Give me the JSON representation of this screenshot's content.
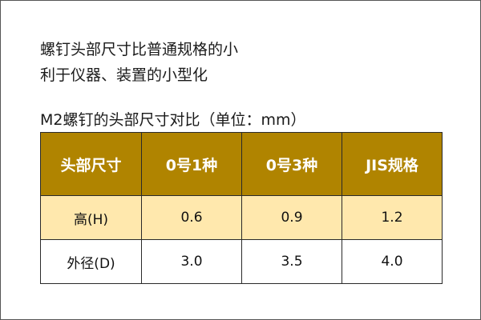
{
  "intro": {
    "line1": "螺钉头部尺寸比普通规格的小",
    "line2": "利于仪器、装置的小型化"
  },
  "table": {
    "caption": "M2螺钉的头部尺寸对比（单位：mm）",
    "headers": [
      "头部尺寸",
      "0号1种",
      "0号3种",
      "JIS规格"
    ],
    "rows": [
      [
        "高(H)",
        "0.6",
        "0.9",
        "1.2"
      ],
      [
        "外径(D)",
        "3.0",
        "3.5",
        "4.0"
      ]
    ],
    "colors": {
      "header_bg": "#b08400",
      "header_text": "#ffffff",
      "row_highlight_bg": "#ffe8ad"
    }
  }
}
